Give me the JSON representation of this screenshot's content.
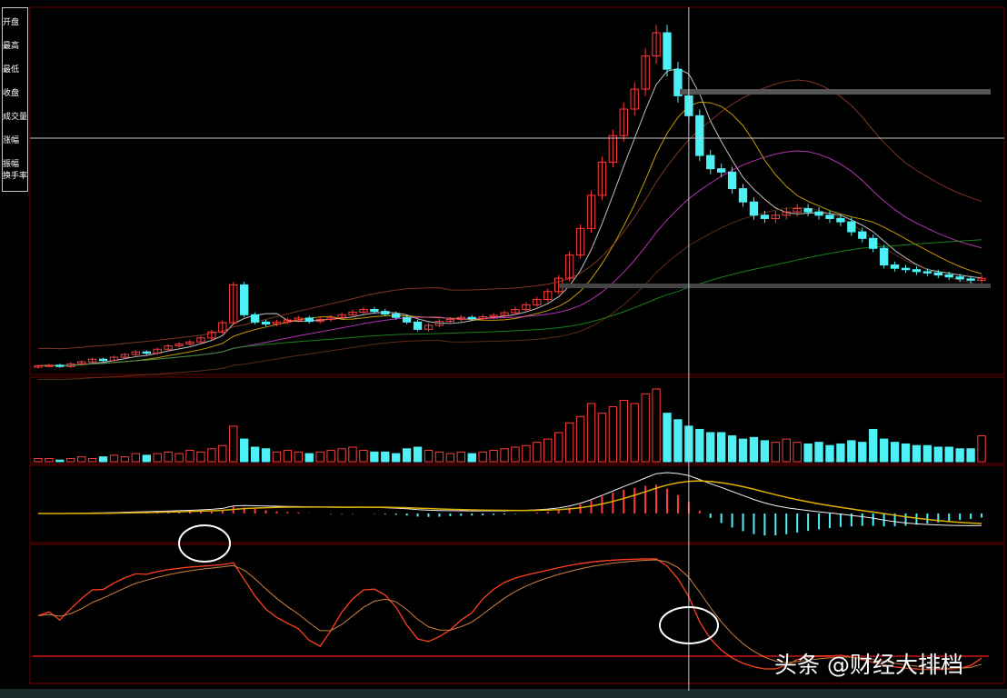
{
  "chart_data": {
    "type": "candlestick",
    "panels": [
      "price",
      "volume",
      "macd",
      "kdj"
    ],
    "closes": [
      10.3,
      10.4,
      10.2,
      10.6,
      10.9,
      11.3,
      11.1,
      11.6,
      12.0,
      12.4,
      12.2,
      12.8,
      13.3,
      13.6,
      13.9,
      14.5,
      15.4,
      16.8,
      22.5,
      18.0,
      16.9,
      16.6,
      16.9,
      17.2,
      17.5,
      17.0,
      17.3,
      17.6,
      18.0,
      18.4,
      18.8,
      18.5,
      18.1,
      17.6,
      16.9,
      15.8,
      16.4,
      17.0,
      17.3,
      17.6,
      17.4,
      17.7,
      17.9,
      18.3,
      18.8,
      19.5,
      20.3,
      21.5,
      23.5,
      27,
      31,
      36,
      41,
      45,
      49,
      52,
      57,
      60.5,
      55,
      51,
      48,
      42,
      40,
      39.5,
      37,
      35,
      33,
      32.5,
      33,
      33.5,
      34,
      33.5,
      33,
      32.5,
      32,
      30.5,
      29.5,
      28,
      25.5,
      25,
      24.8,
      24.5,
      24.3,
      24,
      23.7,
      23.4,
      23.2,
      23.5
    ],
    "volumes": [
      2,
      2,
      1,
      2,
      3,
      2,
      3,
      4,
      3,
      5,
      4,
      5,
      6,
      5,
      7,
      6,
      8,
      10,
      22,
      14,
      9,
      8,
      6,
      7,
      6,
      5,
      6,
      7,
      8,
      9,
      7,
      6,
      6,
      5,
      8,
      9,
      7,
      6,
      5,
      6,
      5,
      6,
      7,
      8,
      9,
      10,
      12,
      14,
      18,
      24,
      28,
      36,
      30,
      34,
      38,
      36,
      42,
      45,
      30,
      26,
      22,
      20,
      18,
      18,
      16,
      14,
      15,
      13,
      12,
      14,
      12,
      11,
      12,
      10,
      11,
      13,
      12,
      20,
      14,
      12,
      11,
      10,
      10,
      9,
      9,
      8,
      8,
      16
    ],
    "moving_averages": [
      5,
      10,
      20,
      60
    ],
    "colors": {
      "up": "#ff3b3b",
      "down": "#4ef0f5",
      "background": "#000000",
      "grid": "#7a0000",
      "crosshair": "#c8c8c8"
    },
    "crosshair_index": 60
  },
  "info_panel": {
    "labels": [
      "开盘",
      "最高",
      "最低",
      "收盘",
      "成交量",
      "涨幅",
      "振幅",
      "换手率"
    ]
  },
  "watermark": "头条 @财经大排档"
}
